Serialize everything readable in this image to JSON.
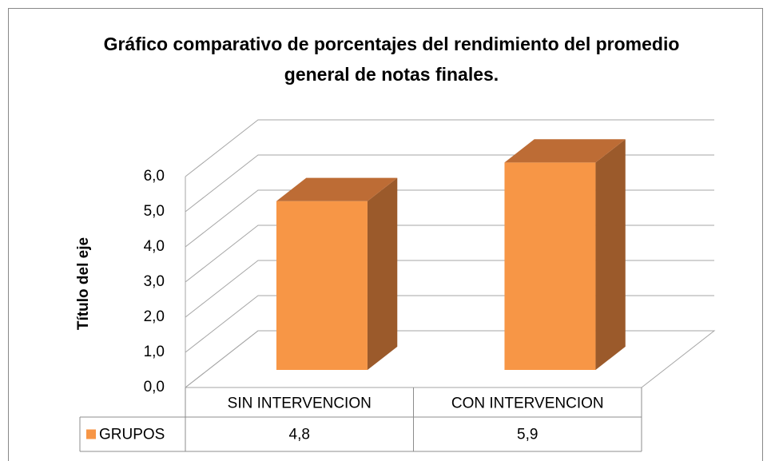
{
  "chart_data": {
    "type": "bar3d",
    "title": "Gráfico comparativo de porcentajes del rendimiento del promedio general de notas finales.",
    "y_label": "Título del eje",
    "categories": [
      "SIN INTERVENCION",
      "CON INTERVENCION"
    ],
    "series": [
      {
        "name": "GRUPOS",
        "color": "#f79646",
        "values": [
          4.8,
          5.9
        ],
        "value_labels": [
          "4,8",
          "5,9"
        ]
      }
    ],
    "ylim": [
      0,
      6
    ],
    "yticks": [
      {
        "value": 0,
        "label": "0,0"
      },
      {
        "value": 1,
        "label": "1,0"
      },
      {
        "value": 2,
        "label": "2,0"
      },
      {
        "value": 3,
        "label": "3,0"
      },
      {
        "value": 4,
        "label": "4,0"
      },
      {
        "value": 5,
        "label": "5,0"
      },
      {
        "value": 6,
        "label": "6,0"
      }
    ],
    "grid": true,
    "data_table": true
  }
}
